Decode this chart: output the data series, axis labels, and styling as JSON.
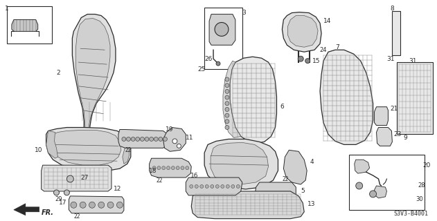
{
  "title": "",
  "diagram_code": "S3V3-B4001",
  "background_color": "#ffffff",
  "text_color": "#000000",
  "fig_width": 6.31,
  "fig_height": 3.2,
  "dpi": 100
}
